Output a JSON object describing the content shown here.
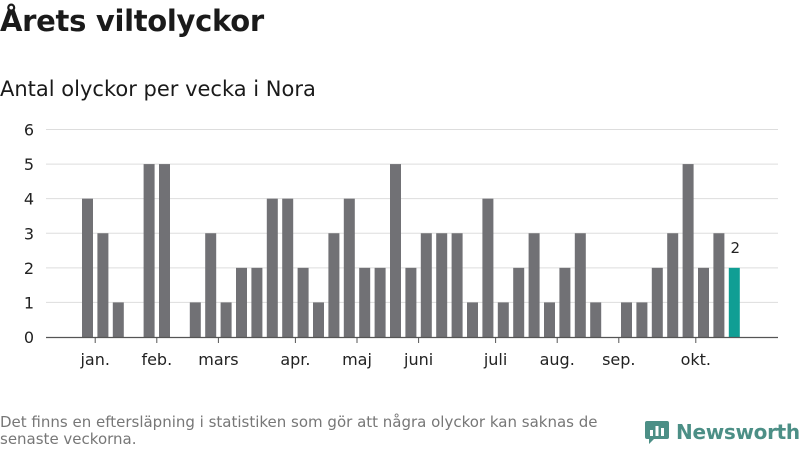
{
  "title": "Årets viltolyckor",
  "subtitle": "Antal olyckor per vecka i Nora",
  "footnote": "Det finns en eftersläpning i statistiken som gör att några olyckor kan saknas de senaste veckorna.",
  "brand": {
    "name": "Newsworthy",
    "color": "#4c8f86"
  },
  "chart_data": {
    "type": "bar",
    "title": "Antal olyckor per vecka i Nora",
    "xlabel": "",
    "ylabel": "",
    "ylim": [
      0,
      6
    ],
    "y_ticks": [
      0,
      1,
      2,
      3,
      4,
      5,
      6
    ],
    "grid": true,
    "weeks": [
      1,
      2,
      3,
      4,
      5,
      6,
      7,
      8,
      9,
      10,
      11,
      12,
      13,
      14,
      15,
      16,
      17,
      18,
      19,
      20,
      21,
      22,
      23,
      24,
      25,
      26,
      27,
      28,
      29,
      30,
      31,
      32,
      33,
      34,
      35,
      36,
      37,
      38,
      39,
      40,
      41,
      42,
      43,
      44
    ],
    "values": [
      4,
      3,
      1,
      0,
      5,
      5,
      0,
      1,
      3,
      1,
      2,
      2,
      4,
      4,
      2,
      1,
      3,
      4,
      2,
      2,
      5,
      2,
      3,
      3,
      3,
      1,
      4,
      1,
      2,
      3,
      1,
      2,
      3,
      1,
      0,
      1,
      1,
      2,
      3,
      5,
      2,
      3,
      2,
      0
    ],
    "last_value_label": "2",
    "month_labels": [
      {
        "label": "jan.",
        "week": 1.5
      },
      {
        "label": "feb.",
        "week": 5.5
      },
      {
        "label": "mars",
        "week": 9.5
      },
      {
        "label": "apr.",
        "week": 14.5
      },
      {
        "label": "maj",
        "week": 18.5
      },
      {
        "label": "juni",
        "week": 22.5
      },
      {
        "label": "juli",
        "week": 27.5
      },
      {
        "label": "aug.",
        "week": 31.5
      },
      {
        "label": "sep.",
        "week": 35.5
      },
      {
        "label": "okt.",
        "week": 40.5
      }
    ],
    "colors": {
      "bar": "#717175",
      "highlight": "#109e94",
      "grid": "#dddddd",
      "axis": "#555555"
    }
  }
}
